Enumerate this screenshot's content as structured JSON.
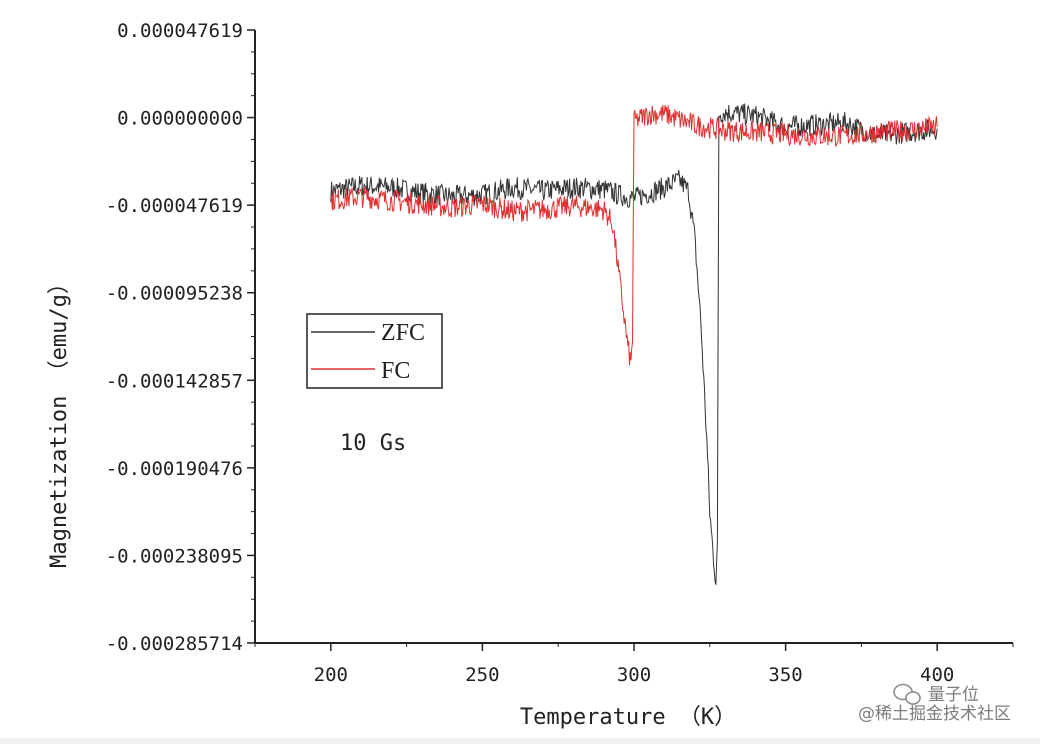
{
  "chart_data": {
    "type": "line",
    "xlabel": "Temperature （K）",
    "ylabel": "Magnetization （emu/g）",
    "xlim": [
      175,
      425
    ],
    "ylim": [
      -0.000285714,
      4.7619e-05
    ],
    "xticks": [
      "200",
      "250",
      "300",
      "350",
      "400"
    ],
    "yticks": [
      "0.000047619",
      "0.000000000",
      "-0.000047619",
      "-0.000095238",
      "-0.000142857",
      "-0.000190476",
      "-0.000238095",
      "-0.000285714"
    ],
    "annotation": "10 Gs",
    "grid": false,
    "legend": "center-left",
    "series": [
      {
        "name": "ZFC",
        "color": "#333333",
        "x": [
          200,
          210,
          220,
          230,
          240,
          250,
          260,
          270,
          280,
          290,
          295,
          300,
          305,
          310,
          315,
          318,
          320,
          322,
          324,
          325,
          326,
          327,
          327.5,
          328,
          330,
          340,
          350,
          360,
          370,
          380,
          390,
          400
        ],
        "y": [
          -4e-05,
          -3.7e-05,
          -3.8e-05,
          -4.1e-05,
          -4.3e-05,
          -4.2e-05,
          -3.8e-05,
          -4e-05,
          -3.8e-05,
          -3.9e-05,
          -4.2e-05,
          -4.4e-05,
          -4.1e-05,
          -3.8e-05,
          -3.4e-05,
          -4e-05,
          -6.5e-05,
          -0.00011,
          -0.000175,
          -0.000215,
          -0.000235,
          -0.000252,
          -0.000235,
          2e-06,
          3e-06,
          1e-06,
          -5e-06,
          -4e-06,
          -3e-06,
          -1e-05,
          -8e-06,
          -6e-06
        ]
      },
      {
        "name": "FC",
        "color": "#e03030",
        "x": [
          200,
          210,
          220,
          230,
          240,
          250,
          260,
          270,
          280,
          290,
          293,
          295,
          297,
          298,
          299,
          299.5,
          300,
          305,
          310,
          320,
          330,
          340,
          350,
          360,
          370,
          380,
          390,
          400
        ],
        "y": [
          -4.5e-05,
          -4.3e-05,
          -4.5e-05,
          -4.7e-05,
          -4.9e-05,
          -4.7e-05,
          -5.1e-05,
          -5e-05,
          -4.8e-05,
          -5e-05,
          -5.8e-05,
          -8.5e-05,
          -0.000112,
          -0.000125,
          -0.000134,
          -0.00012,
          -2e-06,
          2e-06,
          2e-06,
          -4e-06,
          -7e-06,
          -8e-06,
          -9e-06,
          -1e-05,
          -1e-05,
          -8e-06,
          -7e-06,
          -5e-06
        ]
      }
    ]
  },
  "watermark": {
    "line1": "量子位",
    "line2": "@稀土掘金技术社区"
  }
}
